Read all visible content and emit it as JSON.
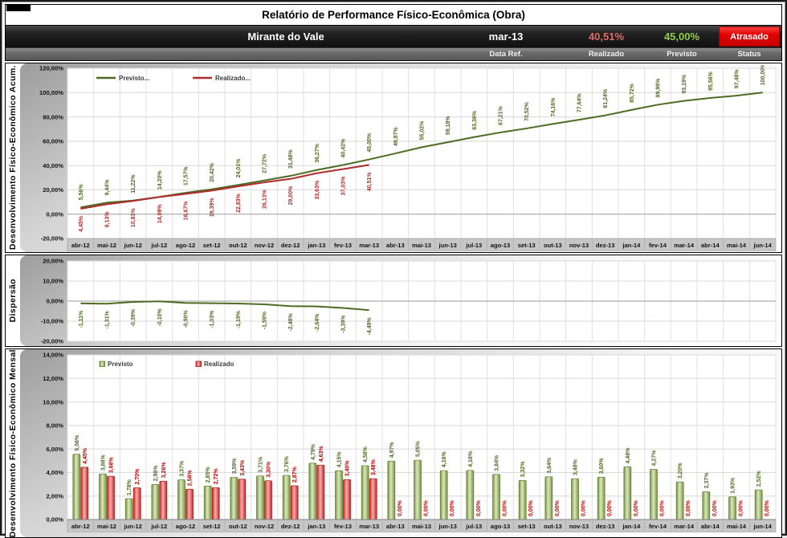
{
  "header": {
    "title": "Relatório de Performance Físico-Econômica (Obra)",
    "project_name": "Mirante do Vale",
    "data_ref_value": "mar-13",
    "realizado_value": "40,51%",
    "previsto_value": "45,00%",
    "status_value": "Atrasado",
    "labels": {
      "data_ref": "Data Ref.",
      "realizado": "Realizado",
      "previsto": "Previsto",
      "status": "Status"
    },
    "colors": {
      "realizado_text": "#e06a6a",
      "previsto_text": "#8fce44",
      "status_bg": "#e00000"
    }
  },
  "chart_data": [
    {
      "id": "acumulado",
      "type": "line",
      "axis_title": "Desenvolvimento Físico-Econômico Acum.",
      "ylim": [
        -20,
        120
      ],
      "ytick_step": 20,
      "grid": true,
      "show_x_labels": true,
      "legend_position": "top-left-inside",
      "categories": [
        "abr-12",
        "mai-12",
        "jun-12",
        "jul-12",
        "ago-12",
        "set-12",
        "out-12",
        "nov-12",
        "dez-12",
        "jan-13",
        "fev-13",
        "mar-13",
        "abr-13",
        "mai-13",
        "jun-13",
        "jul-13",
        "ago-13",
        "set-13",
        "out-13",
        "nov-13",
        "dez-13",
        "jan-14",
        "fev-14",
        "mar-14",
        "abr-14",
        "mai-14",
        "jun-14"
      ],
      "series": [
        {
          "name": "Previsto...",
          "color": "#4e6b22",
          "label_side": "above",
          "values": [
            5.56,
            9.44,
            11.22,
            14.2,
            17.57,
            20.42,
            24.01,
            27.72,
            31.48,
            36.27,
            40.42,
            45.0,
            49.97,
            55.02,
            59.18,
            63.36,
            67.21,
            70.52,
            74.16,
            77.64,
            81.24,
            85.72,
            89.99,
            93.19,
            95.56,
            97.48,
            100.0
          ]
        },
        {
          "name": "Realizado...",
          "color": "#b02b2b",
          "label_side": "below",
          "values": [
            4.45,
            8.13,
            10.83,
            14.09,
            16.67,
            19.39,
            22.83,
            26.13,
            29.0,
            33.63,
            37.03,
            40.51,
            null,
            null,
            null,
            null,
            null,
            null,
            null,
            null,
            null,
            null,
            null,
            null,
            null,
            null,
            null
          ]
        }
      ]
    },
    {
      "id": "dispersao",
      "type": "line",
      "axis_title": "Dispersão",
      "ylim": [
        -20,
        20
      ],
      "ytick_step": 10,
      "grid": true,
      "show_x_labels": false,
      "legend_position": "none",
      "categories": [
        "abr-12",
        "mai-12",
        "jun-12",
        "jul-12",
        "ago-12",
        "set-12",
        "out-12",
        "nov-12",
        "dez-12",
        "jan-13",
        "fev-13",
        "mar-13",
        "abr-13",
        "mai-13",
        "jun-13",
        "jul-13",
        "ago-13",
        "set-13",
        "out-13",
        "nov-13",
        "dez-13",
        "jan-14",
        "fev-14",
        "mar-14",
        "abr-14",
        "mai-14",
        "jun-14"
      ],
      "series": [
        {
          "name": "Dispersão",
          "color": "#4e6b22",
          "label_side": "below",
          "values": [
            -1.11,
            -1.31,
            -0.39,
            -0.1,
            -0.9,
            -1.03,
            -1.19,
            -1.59,
            -2.48,
            -2.64,
            -3.39,
            -4.49,
            null,
            null,
            null,
            null,
            null,
            null,
            null,
            null,
            null,
            null,
            null,
            null,
            null,
            null,
            null
          ]
        }
      ]
    },
    {
      "id": "mensal",
      "type": "bar",
      "axis_title": "Desenvolvimento Físico-Econômico Mensal",
      "ylim": [
        0,
        14
      ],
      "ytick_step": 2,
      "grid": true,
      "show_x_labels": true,
      "legend_position": "top-left-inside",
      "categories": [
        "abr-12",
        "mai-12",
        "jun-12",
        "jul-12",
        "ago-12",
        "set-12",
        "out-12",
        "nov-12",
        "dez-12",
        "jan-13",
        "fev-13",
        "mar-13",
        "abr-13",
        "mai-13",
        "jun-13",
        "jul-13",
        "ago-13",
        "set-13",
        "out-13",
        "nov-13",
        "dez-13",
        "jan-14",
        "fev-14",
        "mar-14",
        "abr-14",
        "mai-14",
        "jun-14"
      ],
      "series": [
        {
          "name": "Previsto",
          "color_edge": "#76923c",
          "color_mid": "#dce9c2",
          "stroke": "#5e7a2a",
          "label_color": "#4e6b22",
          "values": [
            5.56,
            3.88,
            1.78,
            2.98,
            3.37,
            2.85,
            3.59,
            3.71,
            3.76,
            4.79,
            4.15,
            4.58,
            4.97,
            5.05,
            4.16,
            4.18,
            3.84,
            3.32,
            3.64,
            3.48,
            3.6,
            4.48,
            4.27,
            3.2,
            2.37,
            1.93,
            2.52
          ]
        },
        {
          "name": "Realizado",
          "color_edge": "#cc2222",
          "color_mid": "#f5afaf",
          "stroke": "#a01818",
          "label_color": "#c00000",
          "values": [
            4.45,
            3.68,
            2.7,
            3.26,
            2.58,
            2.72,
            3.43,
            3.3,
            2.87,
            4.63,
            3.4,
            3.48,
            0.0,
            0.0,
            0.0,
            0.0,
            0.0,
            0.0,
            0.0,
            0.0,
            0.0,
            0.0,
            0.0,
            0.0,
            0.0,
            0.0,
            0.0
          ]
        }
      ]
    }
  ]
}
